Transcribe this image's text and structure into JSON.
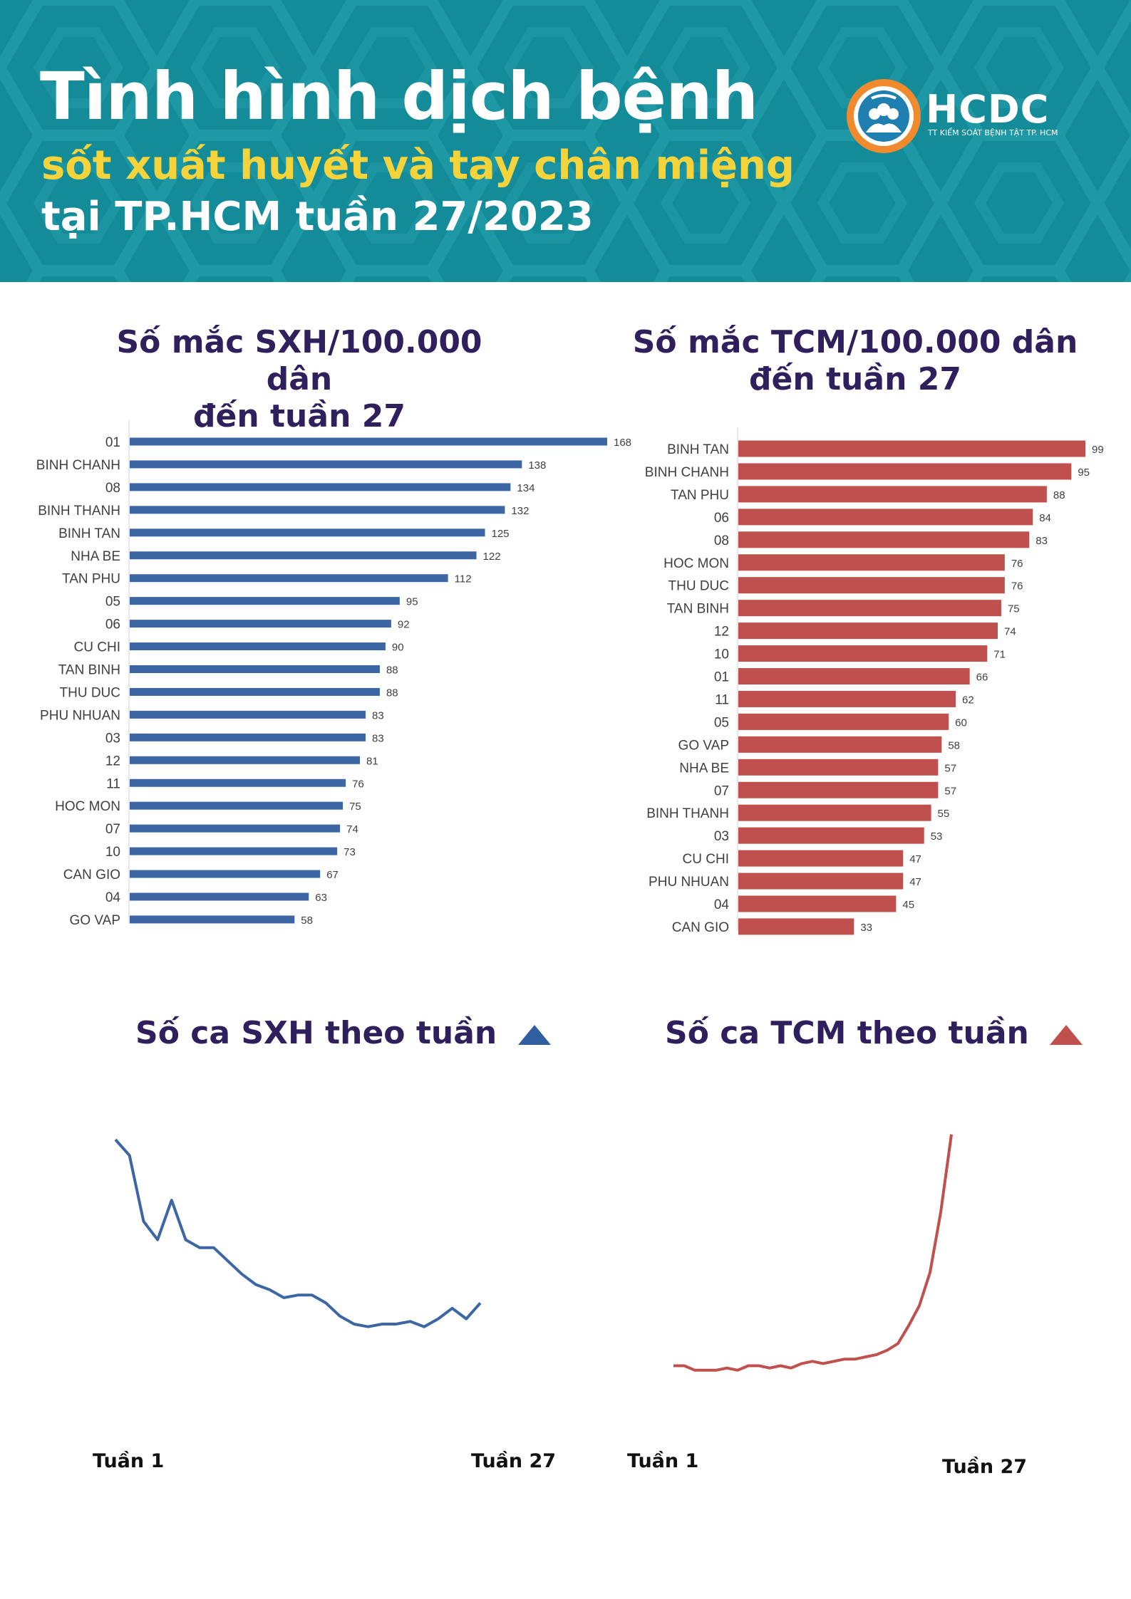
{
  "header": {
    "title_line1": "Tình hình dịch bệnh",
    "title_line2": "sốt xuất huyết và tay chân miệng",
    "title_line3": "tại TP.HCM tuần 27/2023",
    "logo_text": "HCDC",
    "logo_subtext": "TT KIỂM SOÁT BỆNH TẬT TP. HCM"
  },
  "colors": {
    "header_bg": "#138b99",
    "sxh": "#3d67a4",
    "tcm": "#c0504d",
    "title": "#2f1f5c",
    "yellow": "#f5d33a"
  },
  "chart_data": [
    {
      "type": "bar",
      "orientation": "horizontal",
      "title_line1": "Số mắc SXH/100.000 dân",
      "title_line2": "đến tuần 27",
      "categories": [
        "01",
        "BINH CHANH",
        "08",
        "BINH THANH",
        "BINH TAN",
        "NHA BE",
        "TAN PHU",
        "05",
        "06",
        "CU CHI",
        "TAN BINH",
        "THU DUC",
        "PHU NHUAN",
        "03",
        "12",
        "11",
        "HOC MON",
        "07",
        "10",
        "CAN GIO",
        "04",
        "GO VAP"
      ],
      "values": [
        168,
        138,
        134,
        132,
        125,
        122,
        112,
        95,
        92,
        90,
        88,
        88,
        83,
        83,
        81,
        76,
        75,
        74,
        73,
        67,
        63,
        58
      ],
      "xlim": [
        0,
        168
      ]
    },
    {
      "type": "bar",
      "orientation": "horizontal",
      "title_line1": "Số mắc TCM/100.000 dân",
      "title_line2": "đến tuần 27",
      "categories": [
        "BINH TAN",
        "BINH CHANH",
        "TAN PHU",
        "06",
        "08",
        "HOC MON",
        "THU DUC",
        "TAN BINH",
        "12",
        "10",
        "01",
        "11",
        "05",
        "GO VAP",
        "NHA BE",
        "07",
        "BINH THANH",
        "03",
        "CU CHI",
        "PHU NHUAN",
        "04",
        "CAN GIO"
      ],
      "values": [
        99,
        95,
        88,
        84,
        83,
        76,
        76,
        75,
        74,
        71,
        66,
        62,
        60,
        58,
        57,
        57,
        55,
        53,
        47,
        47,
        45,
        33
      ],
      "xlim": [
        0,
        99
      ]
    },
    {
      "type": "line",
      "title": "Số ca SXH theo tuần",
      "x_start_label": "Tuần 1",
      "x_end_label": "Tuần 27",
      "x": [
        1,
        2,
        3,
        4,
        5,
        6,
        7,
        8,
        9,
        10,
        11,
        12,
        13,
        14,
        15,
        16,
        17,
        18,
        19,
        20,
        21,
        22,
        23,
        24,
        25,
        26,
        27
      ],
      "values": [
        100,
        94,
        69,
        62,
        77,
        62,
        59,
        59,
        54,
        49,
        45,
        43,
        40,
        41,
        41,
        38,
        33,
        30,
        29,
        30,
        30,
        31,
        29,
        32,
        36,
        32,
        38
      ],
      "ylim": [
        0,
        120
      ]
    },
    {
      "type": "line",
      "title": "Số ca TCM theo tuần",
      "x_start_label": "Tuần 1",
      "x_end_label": "Tuần 27",
      "x": [
        1,
        2,
        3,
        4,
        5,
        6,
        7,
        8,
        9,
        10,
        11,
        12,
        13,
        14,
        15,
        16,
        17,
        18,
        19,
        20,
        21,
        22,
        23,
        24,
        25,
        26,
        27
      ],
      "values": [
        20,
        20,
        18,
        18,
        18,
        19,
        18,
        20,
        20,
        19,
        20,
        19,
        21,
        22,
        21,
        22,
        23,
        23,
        24,
        25,
        27,
        30,
        38,
        47,
        62,
        89,
        124
      ],
      "ylim": [
        0,
        130
      ]
    }
  ]
}
